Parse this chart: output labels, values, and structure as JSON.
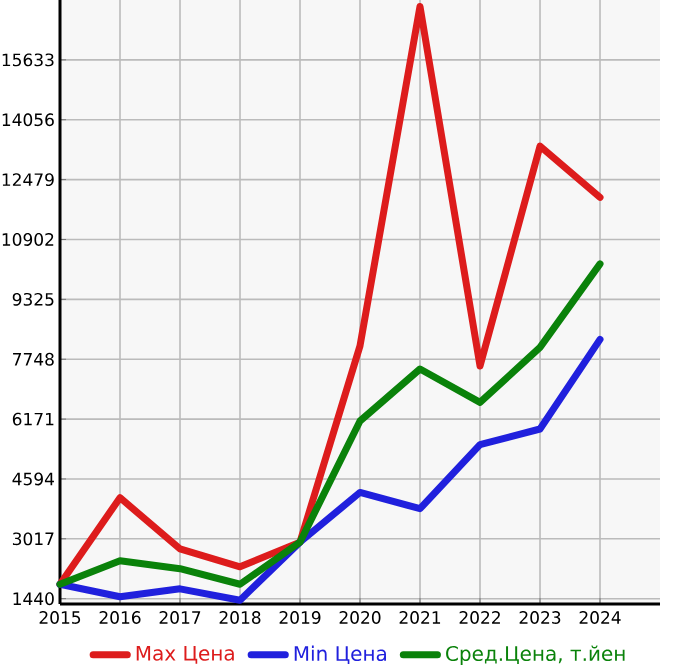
{
  "chart_data": {
    "type": "line",
    "x": [
      2015,
      2016,
      2017,
      2018,
      2019,
      2020,
      2021,
      2022,
      2023,
      2024
    ],
    "series": [
      {
        "name": "Max Цена",
        "color": "#dd1c1c",
        "values": [
          1820,
          4100,
          2750,
          2280,
          2930,
          8100,
          17040,
          7570,
          13360,
          12010
        ]
      },
      {
        "name": "Min Цена",
        "color": "#2020dd",
        "values": [
          1820,
          1490,
          1700,
          1400,
          2930,
          4240,
          3810,
          5500,
          5910,
          8270
        ]
      },
      {
        "name": "Сред.Цена, т.йен",
        "color": "#0a820a",
        "values": [
          1820,
          2440,
          2230,
          1820,
          2930,
          6120,
          7490,
          6610,
          8060,
          10260
        ]
      }
    ],
    "xlim": [
      2015,
      2025
    ],
    "ylim": [
      1300,
      17210
    ],
    "xticks": [
      2015,
      2016,
      2017,
      2018,
      2019,
      2020,
      2021,
      2022,
      2023,
      2024
    ],
    "yticks": [
      1440,
      3017,
      4594,
      6171,
      7748,
      9325,
      10902,
      12479,
      14056,
      15633
    ],
    "grid": true,
    "legend": "bottom"
  }
}
